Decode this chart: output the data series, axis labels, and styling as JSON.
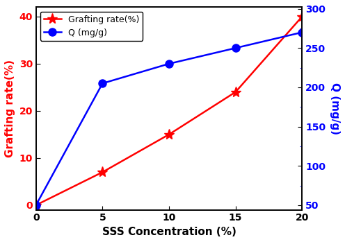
{
  "x": [
    0,
    5,
    10,
    15,
    20
  ],
  "grafting_rate": [
    0,
    7,
    15,
    24,
    40
  ],
  "Q_right": [
    50,
    205,
    230,
    250,
    270
  ],
  "grafting_color": "#ff0000",
  "Q_color": "#0000ff",
  "xlabel": "SSS Concentration (%)",
  "ylabel_left": "Grafting rate(%)",
  "ylabel_right": "Q (mg/g)",
  "legend_grafting": "Grafting rate(%)",
  "legend_Q": "Q (mg/g)",
  "xlim": [
    0,
    20
  ],
  "ylim_left": [
    -1,
    42
  ],
  "ylim_right": [
    44,
    302
  ],
  "yticks_left": [
    0,
    10,
    20,
    30,
    40
  ],
  "yticks_right": [
    50,
    100,
    150,
    200,
    250,
    300
  ],
  "xticks": [
    0,
    5,
    10,
    15,
    20
  ],
  "label_fontsize": 11,
  "tick_fontsize": 10,
  "legend_fontsize": 9
}
